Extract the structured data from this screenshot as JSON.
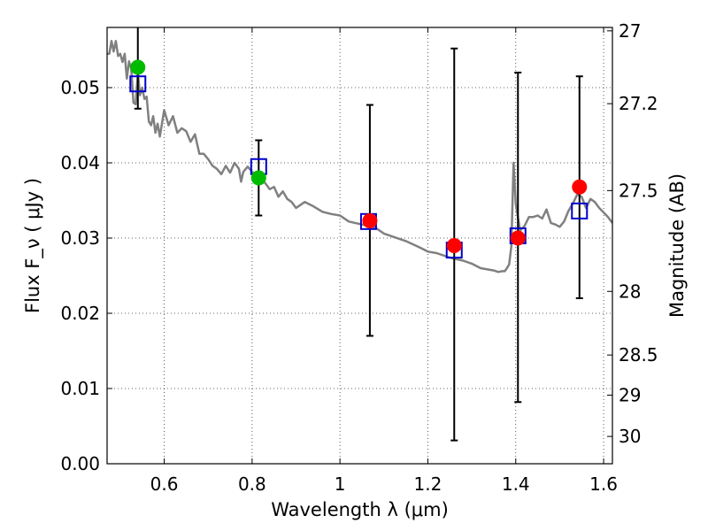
{
  "chart_data": {
    "type": "scatter",
    "xlabel": "Wavelength  λ (μm)",
    "ylabel": "Flux  F_ν  ( μJy )",
    "y2label": "Magnitude (AB)",
    "xlim": [
      0.47,
      1.62
    ],
    "ylim": [
      0.0,
      0.058
    ],
    "x_ticks": [
      {
        "value": 0.6,
        "label": "0.6"
      },
      {
        "value": 0.8,
        "label": "0.8"
      },
      {
        "value": 1.0,
        "label": "1"
      },
      {
        "value": 1.2,
        "label": "1.2"
      },
      {
        "value": 1.4,
        "label": "1.4"
      },
      {
        "value": 1.6,
        "label": "1.6"
      }
    ],
    "y_ticks": [
      {
        "value": 0.0,
        "label": "0.00"
      },
      {
        "value": 0.01,
        "label": "0.01"
      },
      {
        "value": 0.02,
        "label": "0.02"
      },
      {
        "value": 0.03,
        "label": "0.03"
      },
      {
        "value": 0.04,
        "label": "0.04"
      },
      {
        "value": 0.05,
        "label": "0.05"
      }
    ],
    "y2_ticks": [
      {
        "value": 27.0,
        "label": "27"
      },
      {
        "value": 27.2,
        "label": "27.2"
      },
      {
        "value": 27.5,
        "label": "27.5"
      },
      {
        "value": 28.0,
        "label": "28"
      },
      {
        "value": 28.5,
        "label": "28.5"
      },
      {
        "value": 29.0,
        "label": "29"
      },
      {
        "value": 30.0,
        "label": "30"
      }
    ],
    "grid": true,
    "model_sed": {
      "color": "#808080",
      "x": [
        0.47,
        0.475,
        0.48,
        0.485,
        0.49,
        0.495,
        0.5,
        0.505,
        0.51,
        0.515,
        0.52,
        0.525,
        0.53,
        0.535,
        0.54,
        0.545,
        0.55,
        0.555,
        0.56,
        0.565,
        0.57,
        0.575,
        0.58,
        0.585,
        0.59,
        0.6,
        0.61,
        0.62,
        0.63,
        0.64,
        0.65,
        0.66,
        0.67,
        0.68,
        0.69,
        0.7,
        0.71,
        0.72,
        0.73,
        0.74,
        0.75,
        0.76,
        0.77,
        0.775,
        0.78,
        0.79,
        0.8,
        0.81,
        0.82,
        0.83,
        0.84,
        0.85,
        0.86,
        0.87,
        0.88,
        0.89,
        0.9,
        0.92,
        0.94,
        0.96,
        0.98,
        1.0,
        1.02,
        1.05,
        1.08,
        1.1,
        1.12,
        1.15,
        1.18,
        1.2,
        1.22,
        1.25,
        1.28,
        1.3,
        1.32,
        1.35,
        1.36,
        1.37,
        1.375,
        1.38,
        1.385,
        1.39,
        1.395,
        1.4,
        1.41,
        1.42,
        1.43,
        1.44,
        1.45,
        1.46,
        1.47,
        1.48,
        1.49,
        1.5,
        1.51,
        1.52,
        1.53,
        1.54,
        1.55,
        1.56,
        1.57,
        1.58,
        1.59,
        1.6,
        1.61,
        1.62
      ],
      "y": [
        0.0545,
        0.0545,
        0.0562,
        0.0548,
        0.0562,
        0.0542,
        0.0545,
        0.0534,
        0.0545,
        0.0512,
        0.0535,
        0.0525,
        0.048,
        0.0478,
        0.052,
        0.049,
        0.05,
        0.0485,
        0.0488,
        0.0455,
        0.045,
        0.0462,
        0.044,
        0.0452,
        0.0435,
        0.047,
        0.045,
        0.0462,
        0.044,
        0.0446,
        0.0442,
        0.0428,
        0.0438,
        0.0412,
        0.0412,
        0.0405,
        0.0396,
        0.0392,
        0.0385,
        0.0396,
        0.0387,
        0.04,
        0.0392,
        0.0375,
        0.0388,
        0.0395,
        0.0388,
        0.0385,
        0.0378,
        0.0373,
        0.0365,
        0.0368,
        0.0355,
        0.0362,
        0.0352,
        0.0348,
        0.034,
        0.0348,
        0.0342,
        0.0335,
        0.0332,
        0.033,
        0.0322,
        0.0318,
        0.0314,
        0.0306,
        0.0302,
        0.0296,
        0.0288,
        0.0282,
        0.028,
        0.0274,
        0.027,
        0.0266,
        0.026,
        0.0257,
        0.0255,
        0.0256,
        0.0256,
        0.026,
        0.0265,
        0.0289,
        0.04,
        0.0345,
        0.031,
        0.0316,
        0.0328,
        0.0328,
        0.033,
        0.0326,
        0.0338,
        0.032,
        0.0318,
        0.0315,
        0.0322,
        0.0336,
        0.0346,
        0.0358,
        0.0355,
        0.034,
        0.0352,
        0.0348,
        0.034,
        0.0334,
        0.0328,
        0.032
      ]
    },
    "model_points": {
      "marker": "open-square",
      "color": "#0000cc",
      "points": [
        {
          "x": 0.54,
          "y": 0.0505
        },
        {
          "x": 0.815,
          "y": 0.0395
        },
        {
          "x": 1.065,
          "y": 0.0322
        },
        {
          "x": 1.26,
          "y": 0.0284
        },
        {
          "x": 1.405,
          "y": 0.0303
        },
        {
          "x": 1.545,
          "y": 0.0336
        }
      ]
    },
    "observed": {
      "error_color": "#000000",
      "points": [
        {
          "x": 0.54,
          "y": 0.0527,
          "ylow": 0.0472,
          "yhigh": 0.058,
          "color": "#00bb00"
        },
        {
          "x": 0.815,
          "y": 0.038,
          "ylow": 0.033,
          "yhigh": 0.043,
          "color": "#00bb00"
        },
        {
          "x": 1.068,
          "y": 0.0323,
          "ylow": 0.017,
          "yhigh": 0.0477,
          "color": "#ff0000"
        },
        {
          "x": 1.26,
          "y": 0.029,
          "ylow": 0.0031,
          "yhigh": 0.0552,
          "color": "#ff0000"
        },
        {
          "x": 1.405,
          "y": 0.03,
          "ylow": 0.0082,
          "yhigh": 0.052,
          "color": "#ff0000"
        },
        {
          "x": 1.545,
          "y": 0.0368,
          "ylow": 0.022,
          "yhigh": 0.0515,
          "color": "#ff0000"
        }
      ]
    }
  }
}
